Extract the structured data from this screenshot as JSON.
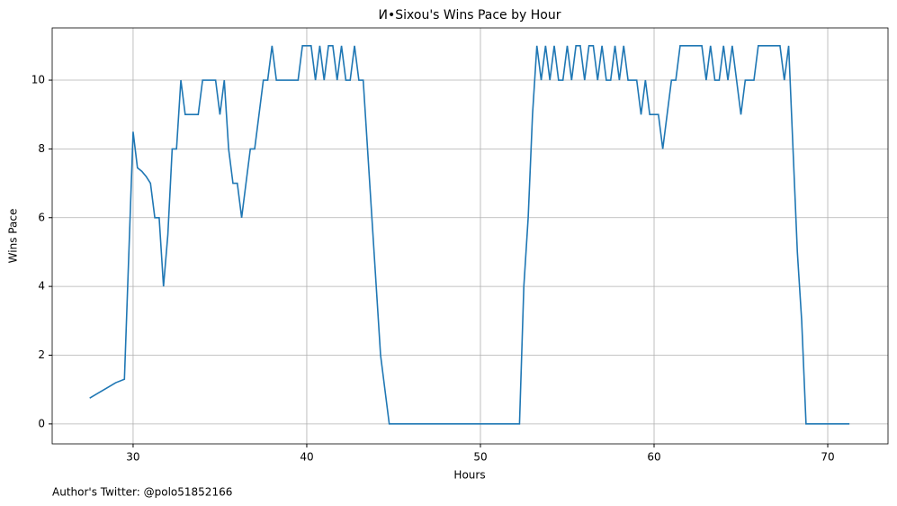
{
  "chart_data": {
    "type": "line",
    "title": "И•Sixou's Wins Pace by Hour",
    "xlabel": "Hours",
    "ylabel": "Wins Pace",
    "footer": "Author's Twitter: @polo51852166",
    "x": [
      27.5,
      28,
      28.5,
      29,
      29.5,
      30,
      30.25,
      30.5,
      30.75,
      31,
      31.25,
      31.5,
      31.75,
      32,
      32.25,
      32.5,
      32.75,
      33,
      33.75,
      34,
      34.75,
      35,
      35.25,
      35.5,
      35.75,
      36,
      36.25,
      36.5,
      36.75,
      37,
      37.25,
      37.5,
      37.75,
      38,
      38.25,
      39.5,
      39.75,
      40.25,
      40.5,
      40.75,
      41,
      41.25,
      41.5,
      41.75,
      42,
      42.25,
      42.5,
      42.75,
      43,
      43.25,
      43.5,
      43.75,
      44,
      44.25,
      44.5,
      44.75,
      52.25,
      52.5,
      52.75,
      53,
      53.25,
      53.5,
      53.75,
      54,
      54.25,
      54.5,
      54.75,
      55,
      55.25,
      55.5,
      55.75,
      56,
      56.25,
      56.5,
      56.75,
      57,
      57.25,
      57.5,
      57.75,
      58,
      58.25,
      58.5,
      59,
      59.25,
      59.5,
      59.75,
      60.25,
      60.5,
      60.75,
      61,
      61.25,
      61.5,
      62.75,
      63,
      63.25,
      63.5,
      63.75,
      64,
      64.25,
      64.5,
      64.75,
      65,
      65.25,
      65.5,
      65.75,
      66,
      67.25,
      67.5,
      67.75,
      68,
      68.25,
      68.5,
      68.75,
      71.25
    ],
    "series": [
      {
        "color": "#1f77b4",
        "values": [
          0.75,
          0.9,
          1.05,
          1.2,
          1.3,
          8.5,
          7.45,
          7.35,
          7.2,
          7,
          6,
          6,
          4,
          5.5,
          8,
          8,
          10,
          9,
          9,
          10,
          10,
          9,
          10,
          8,
          7,
          7,
          6,
          7,
          8,
          8,
          9,
          10,
          10,
          11,
          10,
          10,
          11,
          11,
          10,
          11,
          10,
          11,
          11,
          10,
          11,
          10,
          10,
          11,
          10,
          10,
          8,
          6,
          4,
          2,
          1,
          0,
          0,
          4,
          6,
          9,
          11,
          10,
          11,
          10,
          11,
          10,
          10,
          11,
          10,
          11,
          11,
          10,
          11,
          11,
          10,
          11,
          10,
          10,
          11,
          10,
          11,
          10,
          10,
          9,
          10,
          9,
          9,
          8,
          9,
          10,
          10,
          11,
          11,
          10,
          11,
          10,
          10,
          11,
          10,
          11,
          10,
          9,
          10,
          10,
          10,
          11,
          11,
          10,
          11,
          8,
          5,
          3,
          0,
          0
        ]
      }
    ],
    "xlim": [
      25.34,
      73.47
    ],
    "ylim": [
      -0.58,
      11.52
    ],
    "xticks": [
      30,
      40,
      50,
      60,
      70
    ],
    "yticks": [
      0,
      2,
      4,
      6,
      8,
      10
    ],
    "grid": true
  }
}
